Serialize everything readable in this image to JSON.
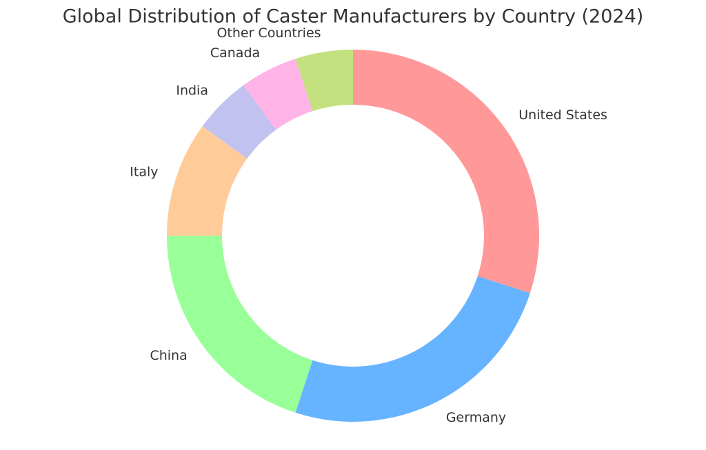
{
  "chart_data": {
    "type": "donut",
    "title": "Global Distribution of Caster Manufacturers by Country (2024)",
    "categories": [
      "United States",
      "Germany",
      "China",
      "Italy",
      "India",
      "Canada",
      "Other Countries"
    ],
    "values": [
      30,
      25,
      20,
      10,
      5,
      5,
      5
    ],
    "colors": [
      "#ff9999",
      "#66b3ff",
      "#99ff99",
      "#ffcc99",
      "#c2c2f0",
      "#ffb3e6",
      "#c4e17f"
    ]
  }
}
